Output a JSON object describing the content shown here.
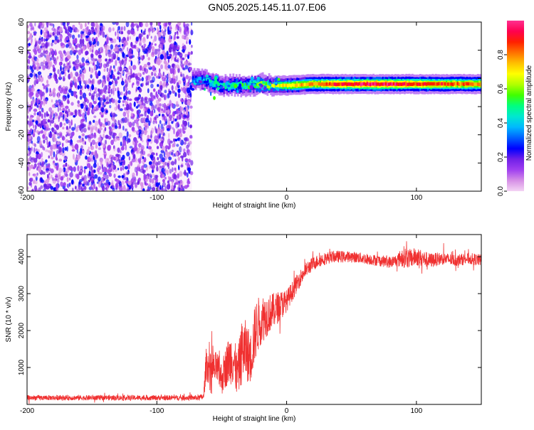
{
  "title": "GN05.2025.145.11.07.E06",
  "chart_data": [
    {
      "type": "heatmap",
      "xlabel": "Height of straight line (km)",
      "ylabel": "Frequency (Hz)",
      "xlim": [
        -200,
        150
      ],
      "ylim": [
        -60,
        60
      ],
      "xticks": [
        -200,
        -100,
        0,
        100
      ],
      "yticks": [
        -60,
        -40,
        -20,
        0,
        20,
        40,
        60
      ],
      "grid": false,
      "colorbar": {
        "label": "Normalized spectral amplitude",
        "range": [
          0,
          1
        ],
        "ticks": [
          0.0,
          0.2,
          0.4,
          0.6,
          0.8
        ],
        "colors": [
          "#f4d4f4",
          "#d68fe6",
          "#a040f0",
          "#7020e8",
          "#0000ff",
          "#0060ff",
          "#00b8ff",
          "#00e8d0",
          "#00ff80",
          "#40ff00",
          "#b0ff00",
          "#ffff00",
          "#ffc000",
          "#ff7000",
          "#ff2000",
          "#ff0050",
          "#ff3090"
        ]
      },
      "features": {
        "noise_region_x": [
          -200,
          -73
        ],
        "noise_frequency_range": [
          -60,
          60
        ],
        "noise_amplitude": 0.15,
        "signal_band": [
          {
            "x": -73,
            "f": 19,
            "a": 0.35
          },
          {
            "x": -65,
            "f": 19,
            "a": 0.4
          },
          {
            "x": -58,
            "f": 17,
            "a": 0.45
          },
          {
            "x": -50,
            "f": 15,
            "a": 0.5
          },
          {
            "x": -40,
            "f": 15,
            "a": 0.5
          },
          {
            "x": -30,
            "f": 15,
            "a": 0.55
          },
          {
            "x": -20,
            "f": 16,
            "a": 0.6
          },
          {
            "x": -10,
            "f": 15,
            "a": 0.65
          },
          {
            "x": 0,
            "f": 15,
            "a": 0.7
          },
          {
            "x": 20,
            "f": 16,
            "a": 0.8
          },
          {
            "x": 40,
            "f": 16,
            "a": 0.9
          },
          {
            "x": 60,
            "f": 16,
            "a": 0.95
          },
          {
            "x": 80,
            "f": 16,
            "a": 0.95
          },
          {
            "x": 90,
            "f": 16,
            "a": 0.9
          },
          {
            "x": 100,
            "f": 16,
            "a": 0.9
          },
          {
            "x": 120,
            "f": 16,
            "a": 0.85
          },
          {
            "x": 150,
            "f": 16,
            "a": 0.8
          }
        ]
      }
    },
    {
      "type": "line",
      "xlabel": "Height of straight line (km)",
      "ylabel": "SNR (10 * v/v)",
      "xlim": [
        -200,
        150
      ],
      "ylim": [
        0,
        4600
      ],
      "xticks": [
        -200,
        -100,
        0,
        100
      ],
      "yticks": [
        1000,
        2000,
        3000,
        4000
      ],
      "grid": false,
      "series": [
        {
          "color": "#f03030",
          "x": [
            -200,
            -180,
            -160,
            -140,
            -120,
            -100,
            -80,
            -70,
            -64,
            -62,
            -58,
            -54,
            -50,
            -46,
            -42,
            -38,
            -34,
            -30,
            -28,
            -24,
            -20,
            -16,
            -12,
            -8,
            -4,
            0,
            5,
            10,
            15,
            20,
            25,
            30,
            35,
            40,
            50,
            60,
            70,
            80,
            85,
            90,
            95,
            100,
            110,
            120,
            130,
            140,
            150
          ],
          "y": [
            180,
            180,
            180,
            180,
            180,
            180,
            180,
            180,
            200,
            1100,
            900,
            1000,
            700,
            1100,
            1300,
            800,
            1500,
            1400,
            1200,
            2000,
            2300,
            2400,
            2500,
            2600,
            2700,
            2800,
            3100,
            3400,
            3650,
            3800,
            3900,
            3950,
            4000,
            4000,
            4000,
            3950,
            3900,
            3850,
            3900,
            4000,
            3950,
            4000,
            3900,
            3950,
            3900,
            3950,
            3900
          ],
          "noise": [
            70,
            70,
            70,
            70,
            70,
            70,
            70,
            70,
            90,
            450,
            450,
            450,
            450,
            600,
            750,
            600,
            900,
            800,
            700,
            800,
            700,
            600,
            500,
            450,
            400,
            300,
            260,
            230,
            200,
            190,
            180,
            170,
            160,
            160,
            150,
            150,
            150,
            160,
            170,
            300,
            260,
            250,
            200,
            170,
            160,
            160,
            160
          ]
        }
      ]
    }
  ]
}
